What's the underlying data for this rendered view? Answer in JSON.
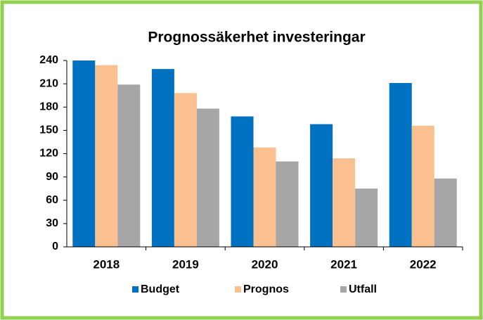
{
  "chart_data": {
    "type": "bar",
    "title": "Prognossäkerhet investeringar",
    "categories": [
      "2018",
      "2019",
      "2020",
      "2021",
      "2022"
    ],
    "series": [
      {
        "name": "Budget",
        "color": "#0070c0",
        "values": [
          240,
          229,
          168,
          158,
          211
        ]
      },
      {
        "name": "Prognos",
        "color": "#fac090",
        "values": [
          234,
          198,
          128,
          114,
          156
        ]
      },
      {
        "name": "Utfall",
        "color": "#a6a6a6",
        "values": [
          209,
          178,
          110,
          75,
          88
        ]
      }
    ],
    "ylim": [
      0,
      240
    ],
    "yticks": [
      0,
      30,
      60,
      90,
      120,
      150,
      180,
      210,
      240
    ],
    "grid": false,
    "legend": "bottom"
  }
}
